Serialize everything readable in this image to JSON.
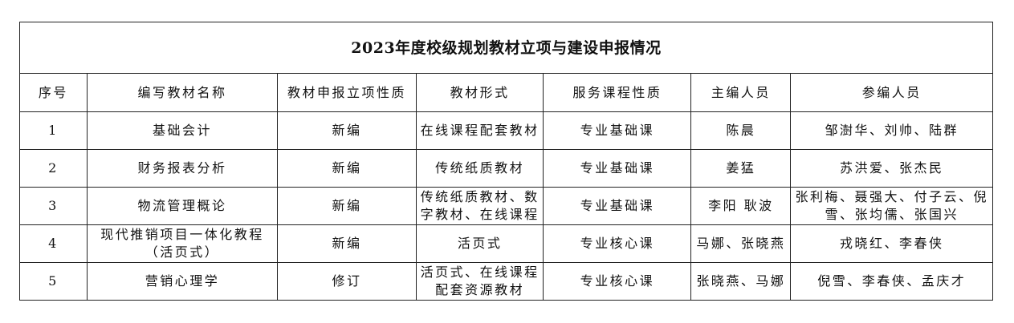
{
  "title": "2023年度校级规划教材立项与建设申报情况",
  "headers": [
    "序号",
    "编写教材名称",
    "教材申报立项性质",
    "教材形式",
    "服务课程性质",
    "主编人员",
    "参编人员"
  ],
  "rows": [
    [
      "1",
      "基础会计",
      "新编",
      "在线课程配套教材",
      "专业基础课",
      "陈晨",
      "邹澍华、刘帅、陆群"
    ],
    [
      "2",
      "财务报表分析",
      "新编",
      "传统纸质教材",
      "专业基础课",
      "姜猛",
      "苏洪爱、张杰民"
    ],
    [
      "3",
      "物流管理概论",
      "新编",
      "传统纸质教材、数字教材、在线课程",
      "专业基础课",
      "李阳 耿波",
      "张利梅、聂强大、付子云、倪雪、张均儒、张国兴"
    ],
    [
      "4",
      "现代推销项目一体化教程（活页式）",
      "新编",
      "活页式",
      "专业核心课",
      "马娜、张晓燕",
      "戎晓红、李春侠"
    ],
    [
      "5",
      "营销心理学",
      "修订",
      "活页式、在线课程配套资源教材",
      "专业核心课",
      "张晓燕、马娜",
      "倪雪、李春侠、孟庆才"
    ]
  ]
}
